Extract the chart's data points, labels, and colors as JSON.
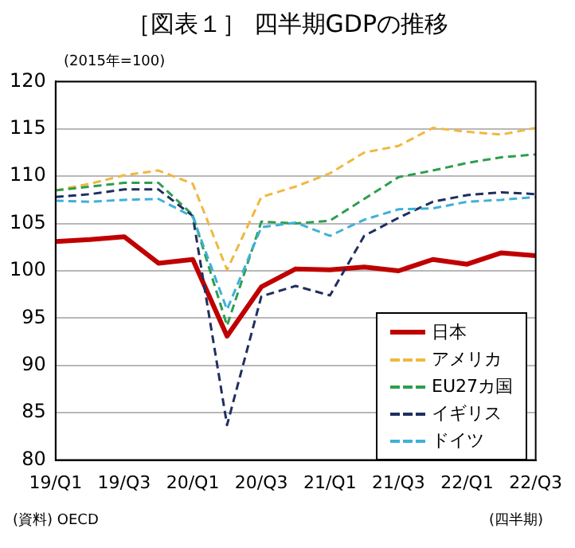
{
  "chart_data": {
    "type": "line",
    "title": "［図表１］ 四半期GDPの推移",
    "ylabel": "(2015年=100)",
    "xlabel": "(四半期)",
    "annotations": [
      "(資料) OECD"
    ],
    "categories": [
      "19/Q1",
      null,
      "19/Q3",
      null,
      "20/Q1",
      null,
      "20/Q3",
      null,
      "21/Q1",
      null,
      "21/Q3",
      null,
      "22/Q1",
      null,
      "22/Q3"
    ],
    "ylim": [
      80,
      120
    ],
    "yticks": [
      80,
      85,
      90,
      95,
      100,
      105,
      110,
      115,
      120
    ],
    "grid": "y",
    "legend": "bottom right",
    "marker": "none",
    "series": [
      {
        "name": "日本",
        "color": "#c00000",
        "line_style": "solid",
        "values": [
          103.1,
          103.3,
          103.6,
          100.8,
          101.2,
          93.1,
          98.3,
          100.2,
          100.1,
          100.4,
          100.0,
          101.2,
          100.7,
          101.9,
          101.6
        ]
      },
      {
        "name": "アメリカ",
        "color": "#f0b840",
        "line_style": "dashed",
        "values": [
          108.5,
          109.2,
          110.1,
          110.6,
          109.2,
          100.1,
          107.8,
          108.9,
          110.3,
          112.5,
          113.2,
          115.1,
          114.7,
          114.4,
          115.1
        ]
      },
      {
        "name": "EU27カ国",
        "color": "#2e9e4f",
        "line_style": "dashed",
        "values": [
          108.5,
          108.9,
          109.3,
          109.3,
          105.9,
          94.2,
          105.2,
          105.0,
          105.3,
          107.6,
          109.9,
          110.6,
          111.4,
          112.0,
          112.3
        ]
      },
      {
        "name": "イギリス",
        "color": "#1f2f5f",
        "line_style": "dashed",
        "values": [
          107.8,
          108.1,
          108.6,
          108.6,
          105.8,
          83.7,
          97.3,
          98.4,
          97.4,
          103.7,
          105.6,
          107.3,
          108.0,
          108.3,
          108.1
        ]
      },
      {
        "name": "ドイツ",
        "color": "#3fb0d8",
        "line_style": "dashed",
        "values": [
          107.4,
          107.3,
          107.5,
          107.6,
          105.7,
          95.9,
          104.6,
          105.1,
          103.7,
          105.4,
          106.5,
          106.6,
          107.3,
          107.5,
          107.8
        ]
      }
    ]
  }
}
